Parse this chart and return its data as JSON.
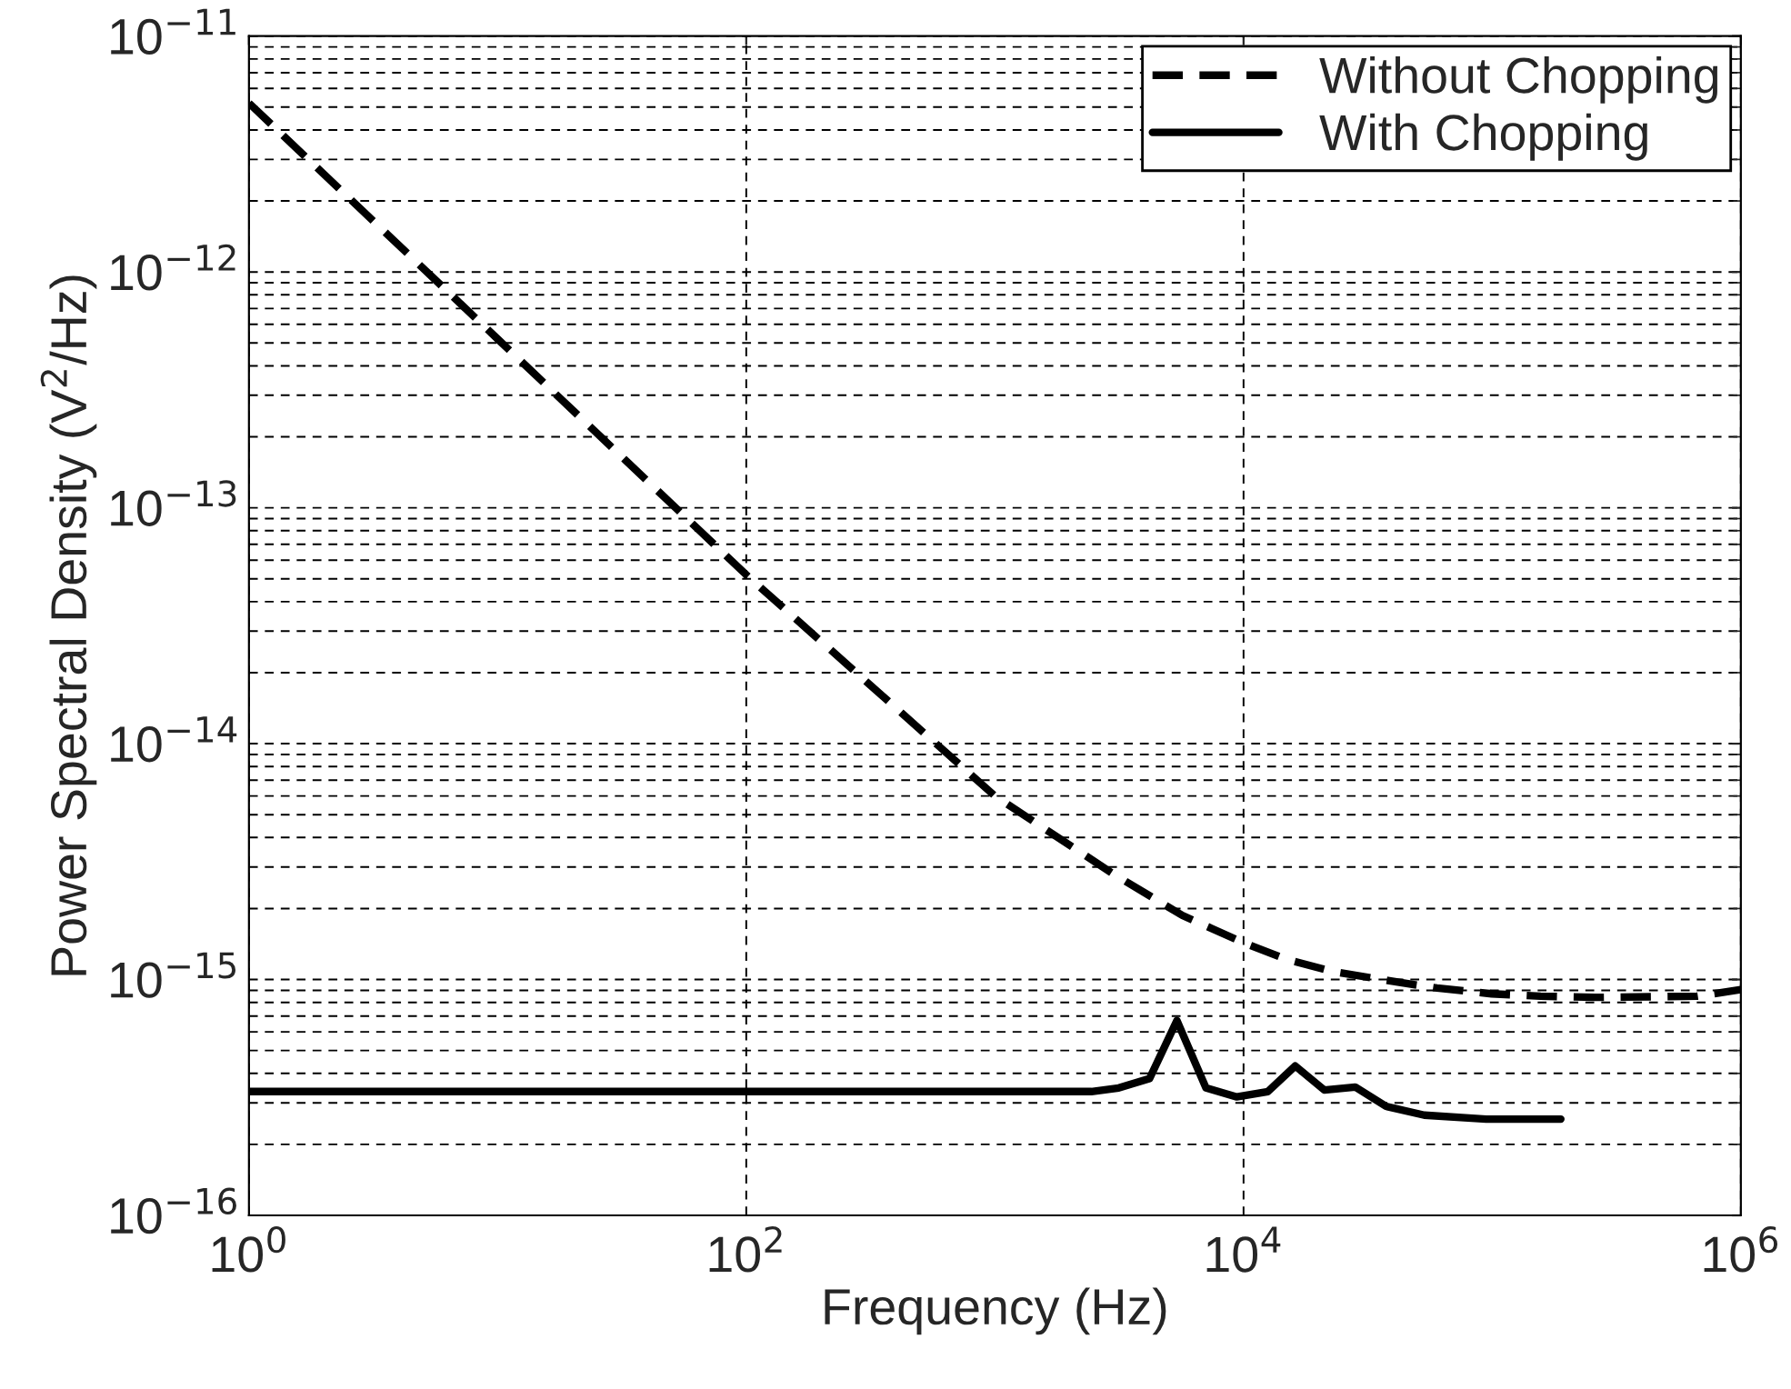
{
  "chart_data": {
    "type": "line",
    "xlabel": "Frequency (Hz)",
    "ylabel": "Power Spectral Density (V$^{2}$/Hz)",
    "log": "xy",
    "grid": true,
    "legend": "top right",
    "xlim": [
      1,
      1000000
    ],
    "ylim": [
      1e-16,
      1e-11
    ],
    "xticks": [
      {
        "value": 1,
        "label": "10$^{0}$"
      },
      {
        "value": 100,
        "label": "10$^{2}$"
      },
      {
        "value": 10000,
        "label": "10$^{4}$"
      },
      {
        "value": 1000000,
        "label": "10$^{6}$"
      }
    ],
    "yticks": [
      {
        "value": 1e-16,
        "label": "10$^{−16}$"
      },
      {
        "value": 1e-15,
        "label": "10$^{−15}$"
      },
      {
        "value": 1e-14,
        "label": "10$^{−14}$"
      },
      {
        "value": 1e-13,
        "label": "10$^{−13}$"
      },
      {
        "value": 1e-12,
        "label": "10$^{−12}$"
      },
      {
        "value": 1e-11,
        "label": "10$^{−11}$"
      }
    ],
    "series": [
      {
        "name": "Without Chopping",
        "color": "#000000",
        "line_style": "dashed",
        "x": [
          1,
          10,
          100,
          1000,
          3000,
          5675,
          9886,
          14830,
          22970,
          38050,
          59950,
          99400,
          156600,
          259600,
          667000,
          1000000
        ],
        "values": [
          5.2e-12,
          5.2e-13,
          5.2e-14,
          6e-15,
          2.8e-15,
          1.87e-15,
          1.44e-15,
          1.22e-15,
          1.08e-15,
          9.9e-16,
          9.2e-16,
          8.7e-16,
          8.5e-16,
          8.4e-16,
          8.5e-16,
          9.06e-16
        ]
      },
      {
        "name": "With Chopping",
        "color": "#000000",
        "line_style": "solid",
        "x": [
          1,
          100,
          2443,
          3148,
          4188,
          5395,
          7063,
          9397,
          12530,
          16140,
          21130,
          28120,
          37410,
          53330,
          94620,
          188800
        ],
        "values": [
          3.35e-16,
          3.35e-16,
          3.35e-16,
          3.47e-16,
          3.8e-16,
          6.7e-16,
          3.47e-16,
          3.18e-16,
          3.35e-16,
          4.3e-16,
          3.4e-16,
          3.5e-16,
          2.9e-16,
          2.66e-16,
          2.56e-16,
          2.56e-16
        ]
      }
    ]
  }
}
